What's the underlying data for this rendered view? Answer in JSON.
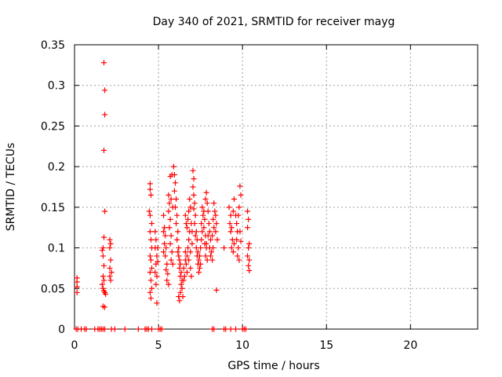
{
  "chart_data": {
    "type": "scatter",
    "title": "Day 340 of 2021, SRMTID for receiver mayg",
    "xlabel": "GPS time / hours",
    "ylabel": "SRMTID / TECUs",
    "xlim": [
      0,
      24
    ],
    "ylim": [
      0,
      0.35
    ],
    "xticks": [
      0,
      5,
      10,
      15,
      20
    ],
    "xtick_labels": [
      "0",
      "5",
      "10",
      "15",
      "20"
    ],
    "yticks": [
      0,
      0.05,
      0.1,
      0.15,
      0.2,
      0.25,
      0.3,
      0.35
    ],
    "ytick_labels": [
      "0",
      "0.05",
      "0.1",
      "0.15",
      "0.2",
      "0.25",
      "0.3",
      "0.35"
    ],
    "grid": true,
    "marker": "+",
    "color": "#ff0000",
    "series": [
      {
        "name": "SRMTID",
        "points": [
          [
            0.1,
            0.0
          ],
          [
            0.2,
            0.0
          ],
          [
            0.4,
            0.0
          ],
          [
            0.6,
            0.0
          ],
          [
            0.7,
            0.0
          ],
          [
            1.2,
            0.0
          ],
          [
            1.4,
            0.0
          ],
          [
            1.5,
            0.0
          ],
          [
            1.6,
            0.0
          ],
          [
            1.7,
            0.0
          ],
          [
            1.8,
            0.0
          ],
          [
            2.2,
            0.0
          ],
          [
            2.4,
            0.0
          ],
          [
            3.0,
            0.0
          ],
          [
            3.8,
            0.0
          ],
          [
            4.2,
            0.0
          ],
          [
            4.3,
            0.0
          ],
          [
            4.4,
            0.0
          ],
          [
            4.6,
            0.0
          ],
          [
            5.0,
            0.0
          ],
          [
            5.1,
            0.0
          ],
          [
            5.2,
            0.0
          ],
          [
            8.2,
            0.0
          ],
          [
            8.3,
            0.0
          ],
          [
            8.9,
            0.0
          ],
          [
            9.0,
            0.0
          ],
          [
            9.3,
            0.0
          ],
          [
            9.6,
            0.0
          ],
          [
            10.0,
            0.0
          ],
          [
            10.1,
            0.0
          ],
          [
            10.2,
            0.0
          ],
          [
            0.15,
            0.045
          ],
          [
            0.15,
            0.052
          ],
          [
            0.15,
            0.058
          ],
          [
            0.15,
            0.063
          ],
          [
            1.75,
            0.328
          ],
          [
            1.8,
            0.294
          ],
          [
            1.8,
            0.264
          ],
          [
            1.75,
            0.22
          ],
          [
            1.8,
            0.145
          ],
          [
            1.75,
            0.113
          ],
          [
            1.7,
            0.1
          ],
          [
            1.65,
            0.097
          ],
          [
            1.7,
            0.09
          ],
          [
            1.75,
            0.078
          ],
          [
            1.7,
            0.065
          ],
          [
            1.75,
            0.06
          ],
          [
            1.65,
            0.055
          ],
          [
            1.7,
            0.05
          ],
          [
            1.75,
            0.047
          ],
          [
            1.8,
            0.045
          ],
          [
            1.85,
            0.043
          ],
          [
            1.7,
            0.028
          ],
          [
            1.8,
            0.027
          ],
          [
            2.1,
            0.11
          ],
          [
            2.15,
            0.105
          ],
          [
            2.1,
            0.1
          ],
          [
            2.15,
            0.085
          ],
          [
            2.1,
            0.075
          ],
          [
            2.2,
            0.07
          ],
          [
            2.1,
            0.065
          ],
          [
            2.15,
            0.06
          ],
          [
            4.5,
            0.179
          ],
          [
            4.5,
            0.172
          ],
          [
            4.55,
            0.165
          ],
          [
            4.45,
            0.145
          ],
          [
            4.5,
            0.14
          ],
          [
            4.6,
            0.13
          ],
          [
            4.5,
            0.12
          ],
          [
            4.55,
            0.11
          ],
          [
            4.6,
            0.1
          ],
          [
            4.5,
            0.09
          ],
          [
            4.55,
            0.085
          ],
          [
            4.6,
            0.075
          ],
          [
            4.5,
            0.07
          ],
          [
            4.55,
            0.06
          ],
          [
            4.6,
            0.05
          ],
          [
            4.5,
            0.045
          ],
          [
            4.55,
            0.038
          ],
          [
            4.8,
            0.12
          ],
          [
            4.85,
            0.11
          ],
          [
            4.8,
            0.1
          ],
          [
            4.9,
            0.09
          ],
          [
            4.85,
            0.08
          ],
          [
            4.8,
            0.07
          ],
          [
            4.9,
            0.065
          ],
          [
            4.85,
            0.055
          ],
          [
            4.9,
            0.032
          ],
          [
            4.95,
            0.1
          ],
          [
            4.95,
            0.083
          ],
          [
            5.3,
            0.14
          ],
          [
            5.35,
            0.125
          ],
          [
            5.3,
            0.12
          ],
          [
            5.4,
            0.115
          ],
          [
            5.35,
            0.105
          ],
          [
            5.45,
            0.1
          ],
          [
            5.3,
            0.095
          ],
          [
            5.4,
            0.09
          ],
          [
            5.5,
            0.08
          ],
          [
            5.45,
            0.073
          ],
          [
            5.55,
            0.068
          ],
          [
            5.5,
            0.06
          ],
          [
            5.6,
            0.055
          ],
          [
            5.6,
            0.165
          ],
          [
            5.65,
            0.155
          ],
          [
            5.6,
            0.145
          ],
          [
            5.7,
            0.135
          ],
          [
            5.65,
            0.125
          ],
          [
            5.75,
            0.115
          ],
          [
            5.7,
            0.105
          ],
          [
            5.8,
            0.095
          ],
          [
            5.75,
            0.085
          ],
          [
            5.85,
            0.08
          ],
          [
            5.7,
            0.188
          ],
          [
            5.8,
            0.19
          ],
          [
            5.75,
            0.16
          ],
          [
            5.85,
            0.15
          ],
          [
            5.9,
            0.2
          ],
          [
            5.95,
            0.19
          ],
          [
            6.0,
            0.18
          ],
          [
            5.95,
            0.17
          ],
          [
            6.05,
            0.16
          ],
          [
            6.0,
            0.15
          ],
          [
            6.1,
            0.14
          ],
          [
            6.05,
            0.13
          ],
          [
            6.15,
            0.12
          ],
          [
            6.1,
            0.11
          ],
          [
            6.2,
            0.1
          ],
          [
            6.15,
            0.095
          ],
          [
            6.2,
            0.09
          ],
          [
            6.25,
            0.085
          ],
          [
            6.3,
            0.08
          ],
          [
            6.25,
            0.075
          ],
          [
            6.35,
            0.07
          ],
          [
            6.3,
            0.065
          ],
          [
            6.4,
            0.06
          ],
          [
            6.35,
            0.055
          ],
          [
            6.2,
            0.04
          ],
          [
            6.25,
            0.035
          ],
          [
            6.3,
            0.045
          ],
          [
            6.4,
            0.05
          ],
          [
            6.45,
            0.04
          ],
          [
            6.5,
            0.06
          ],
          [
            6.5,
            0.075
          ],
          [
            6.55,
            0.065
          ],
          [
            6.6,
            0.085
          ],
          [
            6.6,
            0.095
          ],
          [
            6.65,
            0.08
          ],
          [
            6.7,
            0.07
          ],
          [
            6.7,
            0.09
          ],
          [
            6.75,
            0.1
          ],
          [
            6.8,
            0.085
          ],
          [
            6.8,
            0.11
          ],
          [
            6.85,
            0.12
          ],
          [
            6.9,
            0.095
          ],
          [
            6.9,
            0.075
          ],
          [
            6.95,
            0.065
          ],
          [
            6.6,
            0.14
          ],
          [
            6.65,
            0.13
          ],
          [
            6.7,
            0.125
          ],
          [
            6.75,
            0.135
          ],
          [
            6.8,
            0.145
          ],
          [
            6.85,
            0.16
          ],
          [
            6.9,
            0.15
          ],
          [
            6.95,
            0.13
          ],
          [
            7.0,
            0.12
          ],
          [
            7.0,
            0.105
          ],
          [
            7.05,
            0.195
          ],
          [
            7.1,
            0.185
          ],
          [
            7.05,
            0.175
          ],
          [
            7.1,
            0.165
          ],
          [
            7.15,
            0.155
          ],
          [
            7.1,
            0.148
          ],
          [
            7.2,
            0.14
          ],
          [
            7.15,
            0.13
          ],
          [
            7.25,
            0.12
          ],
          [
            7.2,
            0.115
          ],
          [
            7.3,
            0.11
          ],
          [
            7.25,
            0.1
          ],
          [
            7.35,
            0.095
          ],
          [
            7.3,
            0.09
          ],
          [
            7.4,
            0.085
          ],
          [
            7.35,
            0.08
          ],
          [
            7.45,
            0.075
          ],
          [
            7.4,
            0.07
          ],
          [
            7.5,
            0.08
          ],
          [
            7.45,
            0.09
          ],
          [
            7.5,
            0.1
          ],
          [
            7.55,
            0.11
          ],
          [
            7.6,
            0.12
          ],
          [
            7.55,
            0.13
          ],
          [
            7.65,
            0.14
          ],
          [
            7.6,
            0.15
          ],
          [
            7.7,
            0.145
          ],
          [
            7.75,
            0.135
          ],
          [
            7.7,
            0.125
          ],
          [
            7.8,
            0.115
          ],
          [
            7.75,
            0.105
          ],
          [
            7.85,
            0.1
          ],
          [
            7.8,
            0.09
          ],
          [
            7.9,
            0.085
          ],
          [
            7.85,
            0.105
          ],
          [
            7.95,
            0.115
          ],
          [
            7.8,
            0.16
          ],
          [
            7.85,
            0.168
          ],
          [
            7.9,
            0.155
          ],
          [
            7.95,
            0.145
          ],
          [
            8.0,
            0.13
          ],
          [
            8.05,
            0.12
          ],
          [
            8.1,
            0.11
          ],
          [
            8.05,
            0.1
          ],
          [
            8.15,
            0.095
          ],
          [
            8.1,
            0.09
          ],
          [
            8.2,
            0.085
          ],
          [
            8.25,
            0.1
          ],
          [
            8.2,
            0.115
          ],
          [
            8.3,
            0.125
          ],
          [
            8.25,
            0.135
          ],
          [
            8.35,
            0.145
          ],
          [
            8.3,
            0.155
          ],
          [
            8.4,
            0.14
          ],
          [
            8.45,
            0.13
          ],
          [
            8.4,
            0.12
          ],
          [
            8.5,
            0.11
          ],
          [
            8.45,
            0.048
          ],
          [
            8.9,
            0.1
          ],
          [
            9.2,
            0.15
          ],
          [
            9.3,
            0.14
          ],
          [
            9.25,
            0.13
          ],
          [
            9.35,
            0.125
          ],
          [
            9.3,
            0.12
          ],
          [
            9.4,
            0.11
          ],
          [
            9.35,
            0.1
          ],
          [
            9.45,
            0.095
          ],
          [
            9.5,
            0.105
          ],
          [
            9.5,
            0.16
          ],
          [
            9.45,
            0.145
          ],
          [
            9.6,
            0.14
          ],
          [
            9.65,
            0.13
          ],
          [
            9.7,
            0.12
          ],
          [
            9.65,
            0.11
          ],
          [
            9.75,
            0.1
          ],
          [
            9.7,
            0.09
          ],
          [
            9.8,
            0.085
          ],
          [
            9.75,
            0.14
          ],
          [
            9.8,
            0.15
          ],
          [
            9.85,
            0.176
          ],
          [
            9.9,
            0.165
          ],
          [
            9.85,
            0.12
          ],
          [
            9.9,
            0.108
          ],
          [
            10.3,
            0.145
          ],
          [
            10.35,
            0.135
          ],
          [
            10.3,
            0.125
          ],
          [
            10.4,
            0.105
          ],
          [
            10.35,
            0.1
          ],
          [
            10.3,
            0.09
          ],
          [
            10.4,
            0.085
          ],
          [
            10.35,
            0.078
          ],
          [
            10.4,
            0.072
          ]
        ]
      }
    ]
  }
}
